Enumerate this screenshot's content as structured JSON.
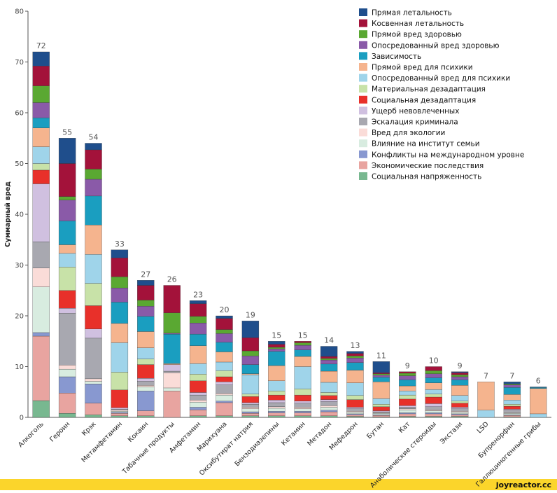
{
  "chart_data": {
    "type": "stacked_bar",
    "y_label": "Суммарный вред",
    "watermark": "joyreactor.cc",
    "categories": [
      "Алкоголь",
      "Героин",
      "Крэк",
      "Метамфетамин",
      "Кокаин",
      "Табачные продукты",
      "Амфетамин",
      "Марихуана",
      "Оксибутират натрия",
      "Бензодиазепины",
      "Кетамин",
      "Метадон",
      "Мефедрон",
      "Бутан",
      "Кат",
      "Анаболические стероиды",
      "Экстази",
      "LSD",
      "Бупренорфин",
      "Галлюциногенные грибы"
    ],
    "totals": [
      72,
      55,
      54,
      33,
      27,
      26,
      23,
      20,
      19,
      15,
      15,
      14,
      13,
      11,
      9,
      10,
      9,
      7,
      7,
      6
    ],
    "ylim": [
      0,
      80
    ],
    "yticks": [
      0,
      10,
      20,
      30,
      40,
      50,
      60,
      70,
      80
    ],
    "series": [
      {
        "name": "Прямая летальность",
        "color": "#1f4e8c",
        "values": [
          2.8,
          5,
          1.3,
          1.6,
          1,
          0,
          0.6,
          0.5,
          3.3,
          0.6,
          0,
          2,
          0.4,
          2.2,
          0,
          0,
          0.2,
          0,
          0.4,
          0.1
        ]
      },
      {
        "name": "Косвенная летальность",
        "color": "#a3123a",
        "values": [
          3.9,
          6.5,
          3.8,
          3.7,
          2.9,
          5.4,
          2.5,
          2.2,
          2.6,
          0.6,
          0.3,
          0.4,
          0.5,
          0.2,
          0.3,
          0.8,
          0.4,
          0,
          0,
          0
        ]
      },
      {
        "name": "Прямой вред здоровью",
        "color": "#5aa832",
        "values": [
          3.3,
          0.7,
          2,
          2.2,
          1.2,
          4,
          1.3,
          0.8,
          1,
          0.3,
          0.5,
          0.3,
          0.4,
          0.3,
          0.5,
          0.6,
          0.4,
          0,
          0.2,
          0
        ]
      },
      {
        "name": "Опосредованный вред здоровью",
        "color": "#8a5aa8",
        "values": [
          3,
          4.1,
          3.3,
          2.8,
          2,
          0.2,
          2.2,
          1.7,
          1.7,
          0.5,
          0.9,
          0.8,
          0.9,
          0.4,
          0.8,
          0.8,
          0.6,
          0,
          0.5,
          0
        ]
      },
      {
        "name": "Зависимость",
        "color": "#1a9ec0",
        "values": [
          2,
          4.7,
          5.7,
          4.2,
          3,
          5.8,
          2.3,
          1.9,
          1.8,
          2.8,
          1.3,
          1.4,
          1.5,
          0.9,
          1.2,
          1,
          1.1,
          0,
          1.4,
          0.2
        ]
      },
      {
        "name": "Прямой вред для психики",
        "color": "#f5b48e",
        "values": [
          3.7,
          1.7,
          5.8,
          3.8,
          3.2,
          0.2,
          3.5,
          2,
          0.2,
          3,
          2,
          2.2,
          2.5,
          3.3,
          1,
          1.3,
          2,
          5.6,
          1.1,
          5
        ]
      },
      {
        "name": "Опосредованный вред для психики",
        "color": "#9fd4ea",
        "values": [
          3.3,
          2.7,
          5.7,
          5.8,
          2.2,
          0,
          2.1,
          1.7,
          3.8,
          2,
          4.4,
          2,
          2.5,
          1.1,
          0.8,
          0.9,
          1.1,
          1.4,
          0.8,
          0.7
        ]
      },
      {
        "name": "Материальная дезадаптация",
        "color": "#c8e2a8",
        "values": [
          1.3,
          4.6,
          4.4,
          3.5,
          1.1,
          0,
          1.3,
          1.2,
          0.5,
          0.8,
          1.2,
          0.6,
          0.8,
          0.5,
          0.8,
          0.6,
          0.4,
          0,
          0.4,
          0
        ]
      },
      {
        "name": "Социальная дезадаптация",
        "color": "#e8302a",
        "values": [
          2.7,
          3.5,
          4.6,
          3.5,
          2.7,
          0,
          2.3,
          1,
          1.2,
          1,
          1.2,
          0.8,
          1.5,
          0.8,
          1.3,
          1.3,
          0.8,
          0,
          0.6,
          0
        ]
      },
      {
        "name": "Ущерб невовлеченных",
        "color": "#d0c0e0",
        "values": [
          11.4,
          1,
          1.8,
          0.3,
          0.6,
          1.3,
          0.5,
          0.6,
          0.3,
          0.5,
          0.4,
          0.4,
          0.3,
          0.2,
          0.3,
          0.6,
          0.3,
          0,
          0.2,
          0
        ]
      },
      {
        "name": "Эскалация криминала",
        "color": "#a8a8b0",
        "values": [
          5.2,
          10.2,
          8,
          0.2,
          0.8,
          0.3,
          1,
          1.7,
          0.6,
          0.8,
          0.8,
          0.8,
          0.5,
          0.2,
          0.3,
          0.6,
          0.5,
          0,
          0.5,
          0
        ]
      },
      {
        "name": "Вред для экологии",
        "color": "#fadcd8",
        "values": [
          3.7,
          0.8,
          0.5,
          0.2,
          0.3,
          3,
          0.4,
          0.3,
          0.3,
          0.3,
          0.3,
          0.3,
          0.2,
          0.1,
          0.2,
          0.2,
          0.2,
          0,
          0.1,
          0
        ]
      },
      {
        "name": "Влияние на институт семьи",
        "color": "#d8ece0",
        "values": [
          9,
          1.5,
          0.5,
          0.2,
          0.8,
          0.6,
          1,
          1.2,
          0.6,
          0.6,
          0.5,
          0.6,
          0.3,
          0.3,
          0.6,
          0.4,
          0.3,
          0,
          0.3,
          0
        ]
      },
      {
        "name": "Конфликты на международном уровне",
        "color": "#8898d0",
        "values": [
          0.7,
          3.2,
          3.8,
          0.2,
          3.9,
          0,
          0.5,
          0.3,
          0.3,
          0.3,
          0.3,
          0.3,
          0.2,
          0.1,
          0.2,
          0.2,
          0.2,
          0,
          0.1,
          0
        ]
      },
      {
        "name": "Экономические последствия",
        "color": "#e8a4a0",
        "values": [
          12.7,
          4,
          2.3,
          0.5,
          1,
          5.2,
          1.2,
          2.6,
          0.5,
          0.6,
          0.6,
          0.8,
          0.3,
          0.3,
          0.5,
          0.5,
          0.3,
          0,
          0.3,
          0
        ]
      },
      {
        "name": "Социальная напряженность",
        "color": "#78b890",
        "values": [
          3.3,
          0.8,
          0.5,
          0.3,
          0.3,
          0,
          0.3,
          0.3,
          0.3,
          0.3,
          0.3,
          0.3,
          0.2,
          0.1,
          0.2,
          0.2,
          0.2,
          0,
          0.1,
          0
        ]
      }
    ]
  }
}
